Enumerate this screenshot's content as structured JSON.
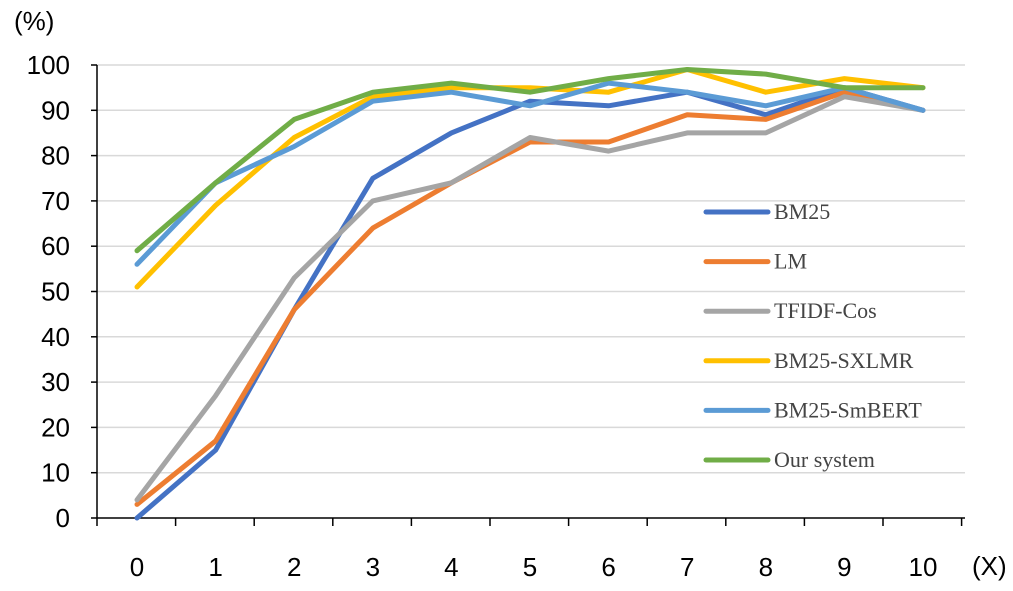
{
  "chart_data": {
    "type": "line",
    "title": "",
    "xlabel": "(X)",
    "ylabel": "(%)",
    "x": [
      0,
      1,
      2,
      3,
      4,
      5,
      6,
      7,
      8,
      9,
      10
    ],
    "x_tick_labels": [
      "0",
      "1",
      "2",
      "3",
      "4",
      "5",
      "6",
      "7",
      "8",
      "9",
      "10"
    ],
    "y_tick_labels": [
      "0",
      "10",
      "20",
      "30",
      "40",
      "50",
      "60",
      "70",
      "80",
      "90",
      "100"
    ],
    "ylim": [
      0,
      100
    ],
    "grid": "horizontal",
    "legend_position": "right-center",
    "series": [
      {
        "name": "BM25",
        "color": "#4472C4",
        "values": [
          0,
          15,
          46,
          75,
          85,
          92,
          91,
          94,
          89,
          95,
          90
        ]
      },
      {
        "name": "LM",
        "color": "#ED7D31",
        "values": [
          3,
          17,
          46,
          64,
          74,
          83,
          83,
          89,
          88,
          94,
          90
        ]
      },
      {
        "name": "TFIDF-Cos",
        "color": "#A5A5A5",
        "values": [
          4,
          27,
          53,
          70,
          74,
          84,
          81,
          85,
          85,
          93,
          90
        ]
      },
      {
        "name": "BM25-SXLMR",
        "color": "#FFC000",
        "values": [
          51,
          69,
          84,
          93,
          95,
          95,
          94,
          99,
          94,
          97,
          95
        ]
      },
      {
        "name": "BM25-SmBERT",
        "color": "#5B9BD5",
        "values": [
          56,
          74,
          82,
          92,
          94,
          91,
          96,
          94,
          91,
          95,
          90
        ]
      },
      {
        "name": "Our system",
        "color": "#70AD47",
        "values": [
          59,
          74,
          88,
          94,
          96,
          94,
          97,
          99,
          98,
          95,
          95
        ]
      }
    ]
  }
}
